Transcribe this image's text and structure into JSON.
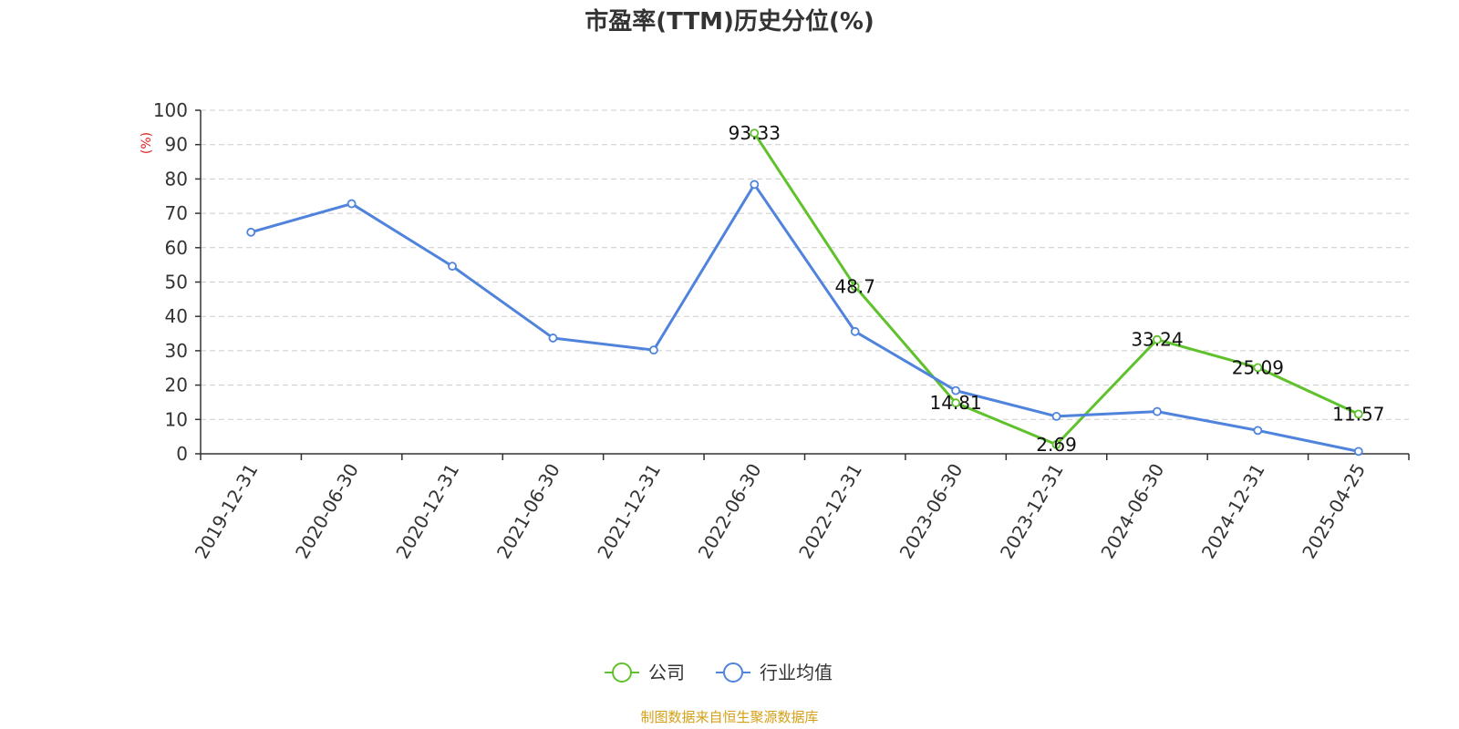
{
  "chart_data": {
    "type": "line",
    "title": "市盈率(TTM)历史分位(%)",
    "ylabel": "(%)",
    "xlabel": "",
    "ylim": [
      0,
      100
    ],
    "yticks": [
      0,
      10,
      20,
      30,
      40,
      50,
      60,
      70,
      80,
      90,
      100
    ],
    "categories": [
      "2019-12-31",
      "2020-06-30",
      "2020-12-31",
      "2021-06-30",
      "2021-12-31",
      "2022-06-30",
      "2022-12-31",
      "2023-06-30",
      "2023-12-31",
      "2024-06-30",
      "2024-12-31",
      "2025-04-25"
    ],
    "grid": true,
    "legend_position": "bottom-center",
    "series": [
      {
        "name": "公司",
        "color": "#5fc12b",
        "values": [
          null,
          null,
          null,
          null,
          null,
          93.33,
          48.7,
          14.81,
          2.69,
          33.24,
          25.09,
          11.57
        ],
        "labels": [
          null,
          null,
          null,
          null,
          null,
          "93.33",
          "48.7",
          "14.81",
          "2.69",
          "33.24",
          "25.09",
          "11.57"
        ]
      },
      {
        "name": "行业均值",
        "color": "#4f83dc",
        "values": [
          64.5,
          72.8,
          54.6,
          33.7,
          30.2,
          78.4,
          35.6,
          18.4,
          10.9,
          12.3,
          6.8,
          0.7
        ],
        "labels": []
      }
    ]
  },
  "footer": {
    "source": "制图数据来自恒生聚源数据库",
    "source_color": "#d4a017"
  },
  "axis": {
    "ylabel_color": "#e02020"
  }
}
